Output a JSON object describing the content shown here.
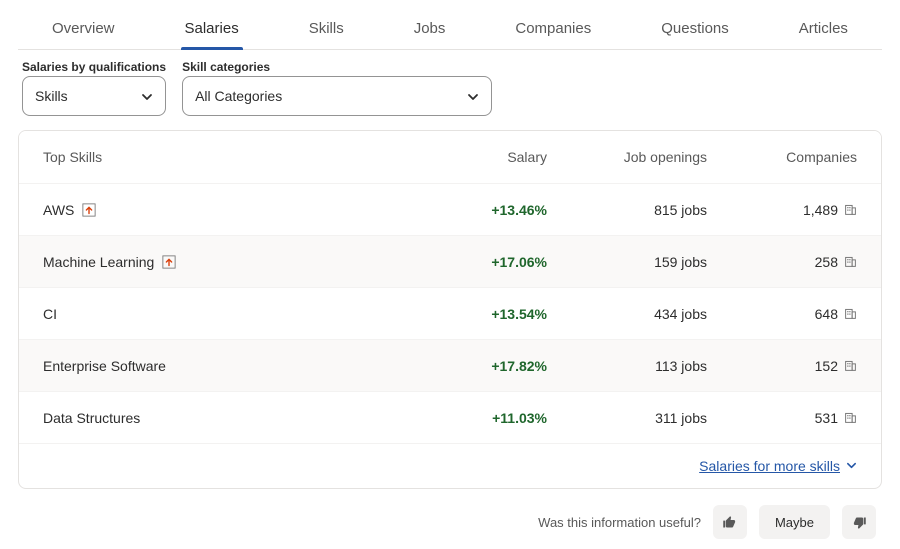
{
  "tabs": {
    "items": [
      "Overview",
      "Salaries",
      "Skills",
      "Jobs",
      "Companies",
      "Questions",
      "Articles"
    ],
    "active_index": 1
  },
  "filters": {
    "qualifications": {
      "label": "Salaries by qualifications",
      "value": "Skills"
    },
    "categories": {
      "label": "Skill categories",
      "value": "All Categories"
    }
  },
  "table": {
    "headers": {
      "skill": "Top Skills",
      "salary": "Salary",
      "jobs": "Job openings",
      "companies": "Companies"
    },
    "rows": [
      {
        "skill": "AWS",
        "trend": true,
        "salary": "+13.46%",
        "jobs": "815 jobs",
        "companies": "1,489"
      },
      {
        "skill": "Machine Learning",
        "trend": true,
        "salary": "+17.06%",
        "jobs": "159 jobs",
        "companies": "258"
      },
      {
        "skill": "CI",
        "trend": false,
        "salary": "+13.54%",
        "jobs": "434 jobs",
        "companies": "648"
      },
      {
        "skill": "Enterprise Software",
        "trend": false,
        "salary": "+17.82%",
        "jobs": "113 jobs",
        "companies": "152"
      },
      {
        "skill": "Data Structures",
        "trend": false,
        "salary": "+11.03%",
        "jobs": "311 jobs",
        "companies": "531"
      }
    ],
    "more_link": "Salaries for more skills"
  },
  "feedback": {
    "prompt": "Was this information useful?",
    "maybe": "Maybe"
  },
  "colors": {
    "salary_positive": "#1f662c",
    "link": "#2557a7",
    "border": "#e4e2e0"
  }
}
